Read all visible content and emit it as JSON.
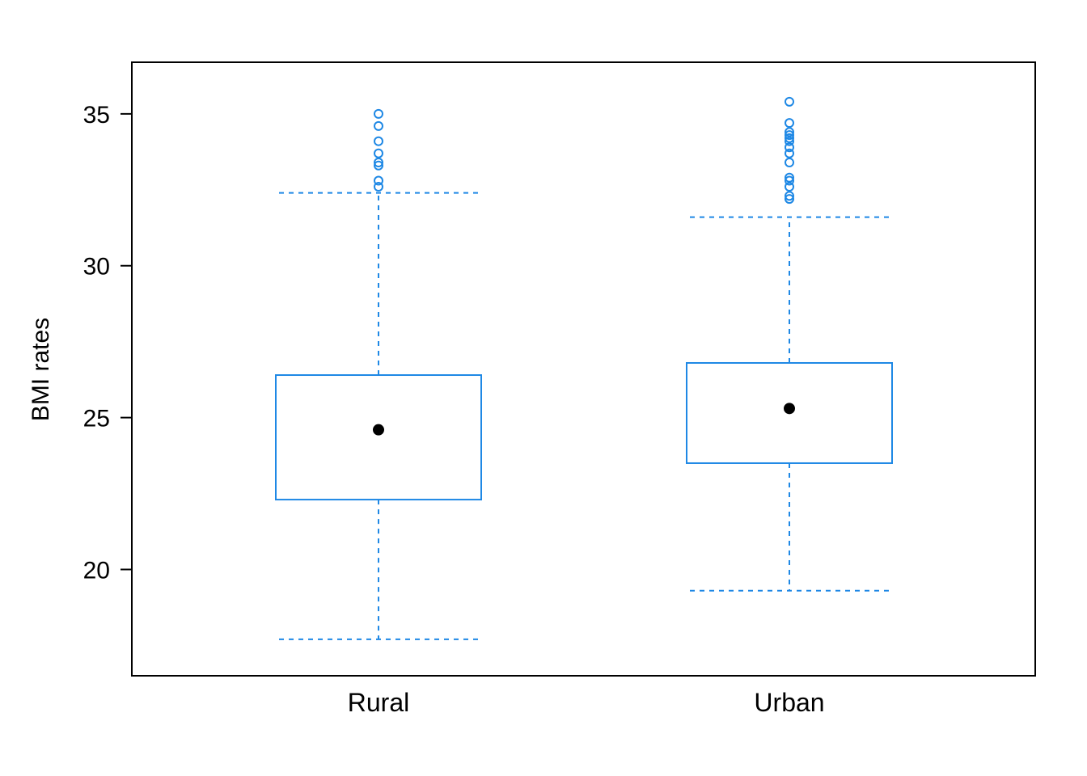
{
  "chart_data": {
    "type": "box",
    "title": "",
    "xlabel": "",
    "ylabel": "BMI rates",
    "ylim": [
      16.5,
      36.7
    ],
    "yticks": [
      20,
      25,
      30,
      35
    ],
    "grid": false,
    "colors": {
      "box": "#1E88E5",
      "mean": "#000000",
      "frame": "#000000"
    },
    "categories": [
      "Rural",
      "Urban"
    ],
    "series": [
      {
        "category": "Rural",
        "whisker_low": 17.7,
        "q1": 22.3,
        "q3": 26.4,
        "whisker_high": 32.4,
        "mean": 24.6,
        "outliers": [
          32.6,
          32.8,
          33.3,
          33.4,
          33.7,
          34.1,
          34.6,
          35.0
        ]
      },
      {
        "category": "Urban",
        "whisker_low": 19.3,
        "q1": 23.5,
        "q3": 26.8,
        "whisker_high": 31.6,
        "mean": 25.3,
        "outliers": [
          32.2,
          32.3,
          32.6,
          32.8,
          32.9,
          33.4,
          33.7,
          33.9,
          34.1,
          34.2,
          34.3,
          34.4,
          34.7,
          35.4
        ]
      }
    ]
  }
}
